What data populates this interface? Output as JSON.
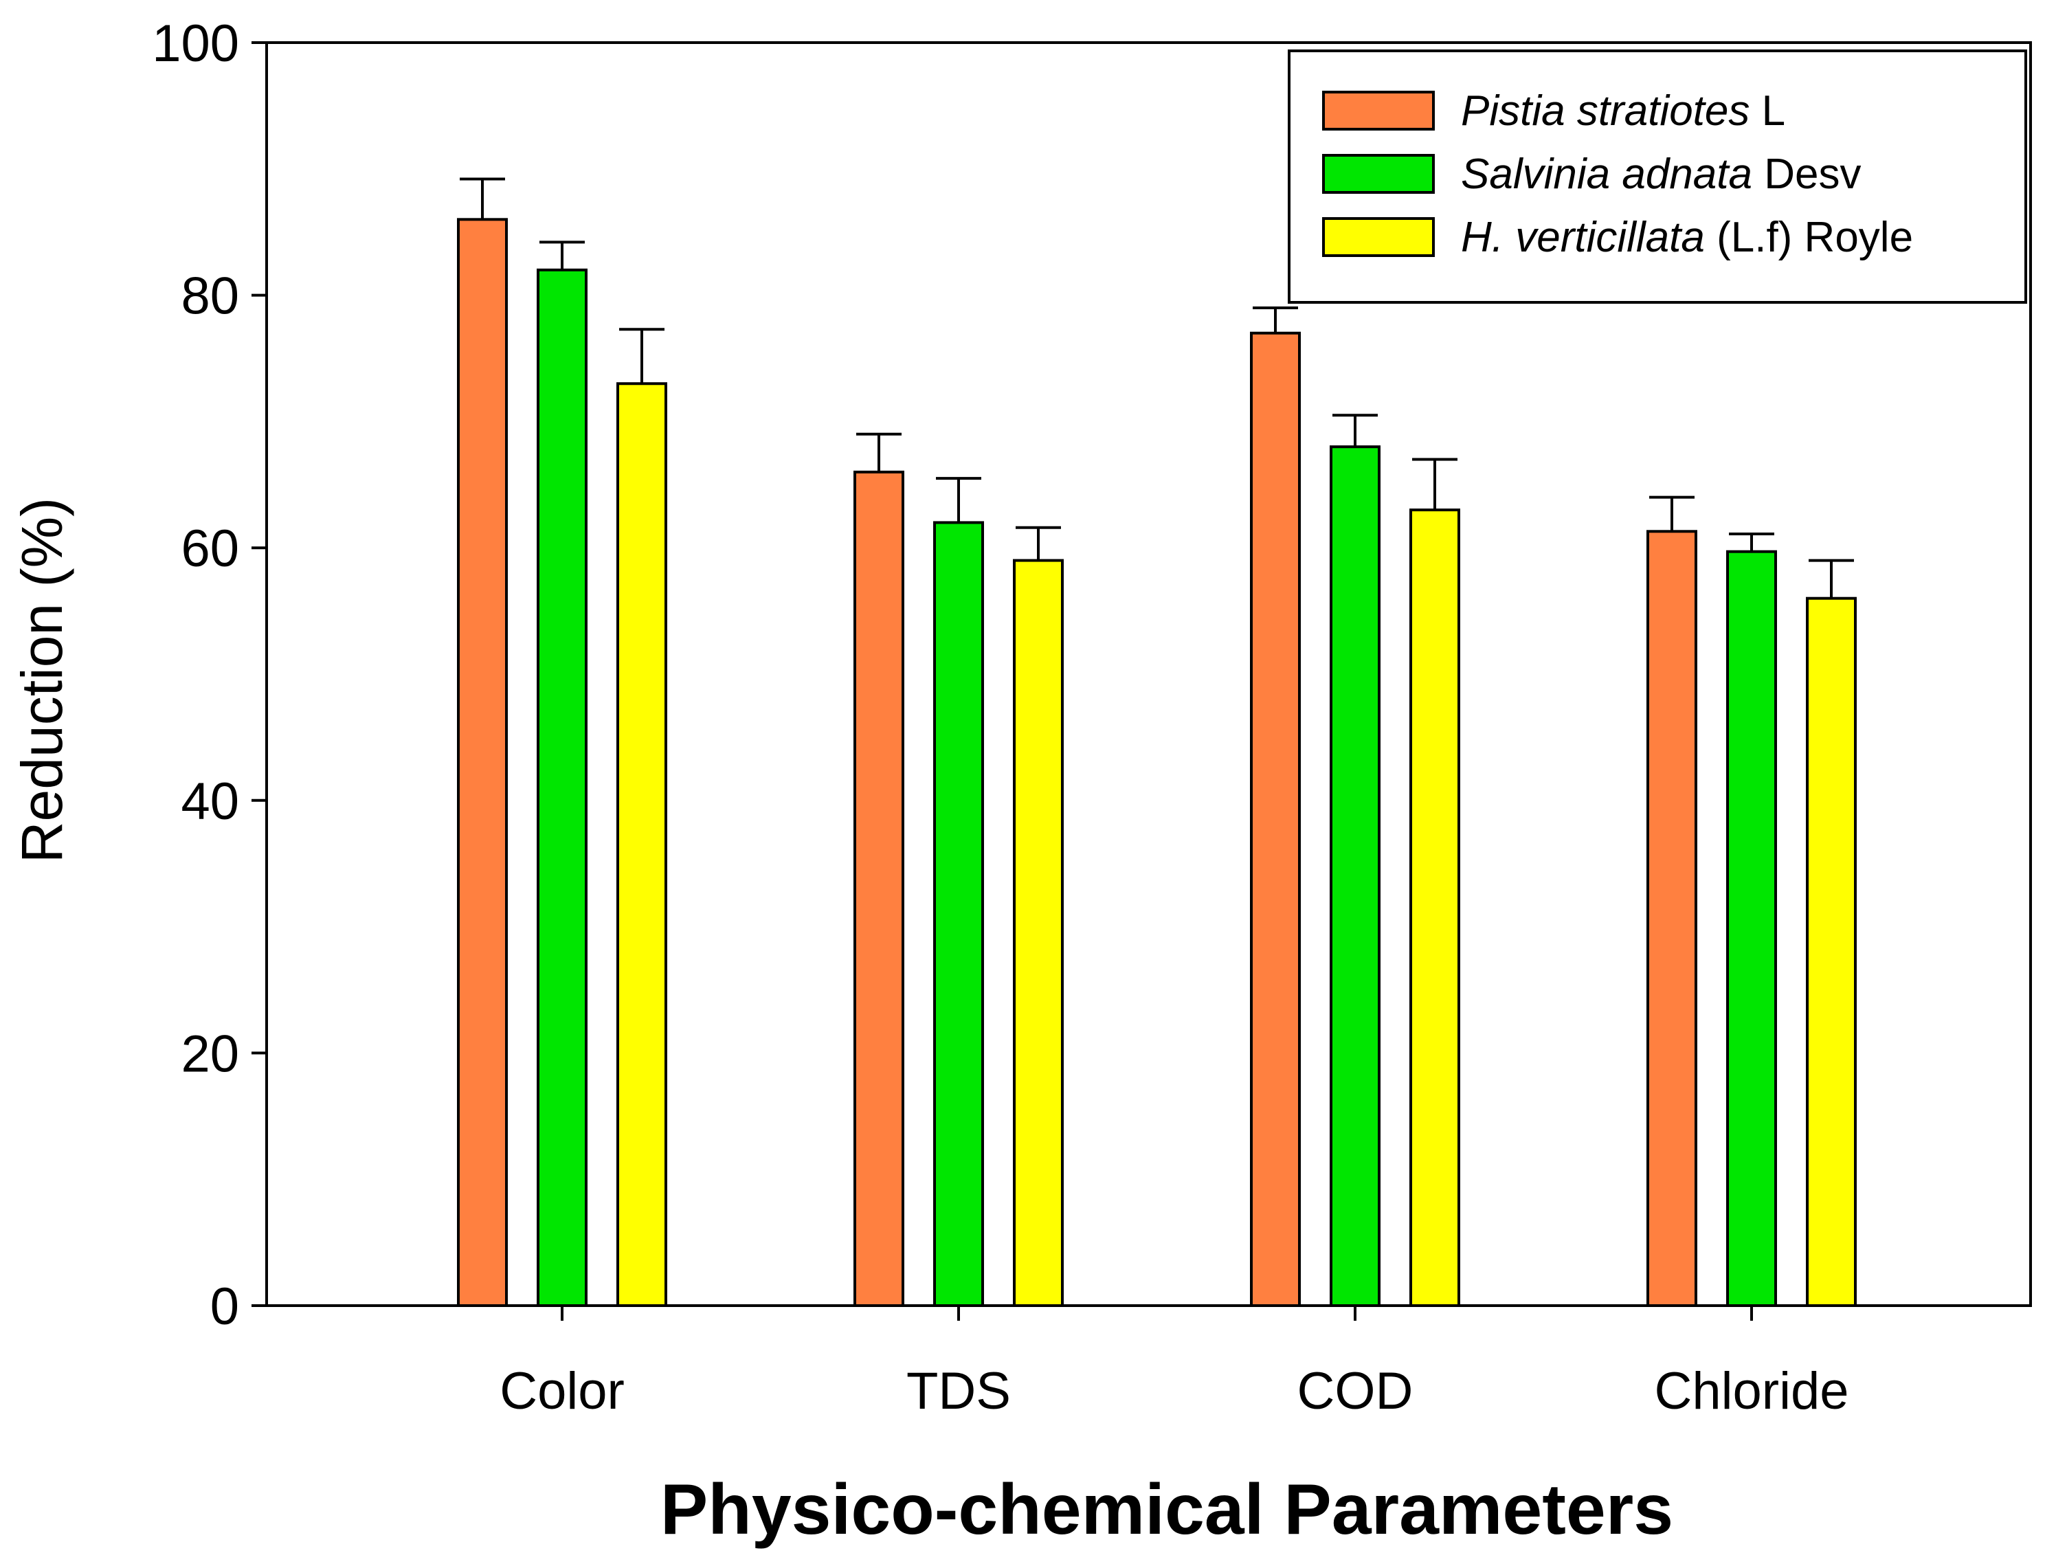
{
  "chart_data": {
    "type": "bar",
    "title": "",
    "xlabel": "Physico-chemical Parameters",
    "ylabel": "Reduction (%)",
    "ylim": [
      0,
      100
    ],
    "yticks": [
      0,
      20,
      40,
      60,
      80,
      100
    ],
    "categories": [
      "Color",
      "TDS",
      "COD",
      "Chloride"
    ],
    "legend_position": "top-right",
    "series": [
      {
        "name": "Pistia stratiotes L",
        "legend_italic": "Pistia stratiotes",
        "legend_plain": " L",
        "color": "#FF8040",
        "values": [
          86,
          66,
          77,
          61.3
        ],
        "errors": [
          3.2,
          3.0,
          2.0,
          2.7
        ]
      },
      {
        "name": "Salvinia adnata Desv",
        "legend_italic": "Salvinia adnata",
        "legend_plain": " Desv",
        "color": "#00E600",
        "values": [
          82,
          62,
          68,
          59.7
        ],
        "errors": [
          2.2,
          3.5,
          2.5,
          1.4
        ]
      },
      {
        "name": "H. verticillata (L.f) Royle",
        "legend_italic": "H. verticillata",
        "legend_plain": " (L.f) Royle",
        "color": "#FFFF00",
        "values": [
          73,
          59,
          63,
          56
        ],
        "errors": [
          4.3,
          2.6,
          4.0,
          3.0
        ]
      }
    ]
  }
}
